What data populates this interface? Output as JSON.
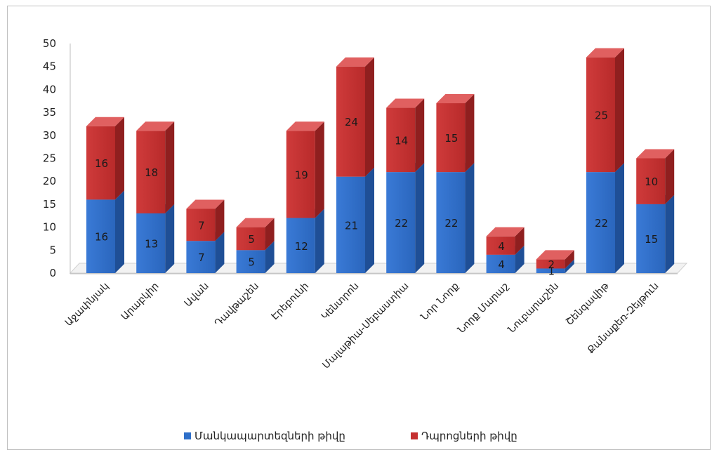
{
  "chart_data": {
    "type": "bar",
    "stacked": true,
    "three_d": true,
    "title": "",
    "xlabel": "",
    "ylabel": "",
    "ylim": [
      0,
      50
    ],
    "yticks": [
      0,
      5,
      10,
      15,
      20,
      25,
      30,
      35,
      40,
      45,
      50
    ],
    "grid": false,
    "legend_position": "bottom",
    "categories": [
      "Աջափնյակ",
      "Արաբկիր",
      "Ավան",
      "Դավթաշեն",
      "Էրեբունի",
      "Կենտրոն",
      "Մալաթիա-Սեբաստիա",
      "Նոր Նորք",
      "Նորք Մարաշ",
      "Նուբարաշեն",
      "Շենգավիթ",
      "Քանաքեռ-Զեյթուն"
    ],
    "series": [
      {
        "name": "Մանկապարտեզների թիվը",
        "color": "#2e6fc9",
        "values": [
          16,
          13,
          7,
          5,
          12,
          21,
          22,
          22,
          4,
          1,
          22,
          15
        ]
      },
      {
        "name": "Դպրոցների թիվը",
        "color": "#c53030",
        "values": [
          16,
          18,
          7,
          5,
          19,
          24,
          14,
          15,
          4,
          2,
          25,
          10
        ]
      }
    ]
  }
}
